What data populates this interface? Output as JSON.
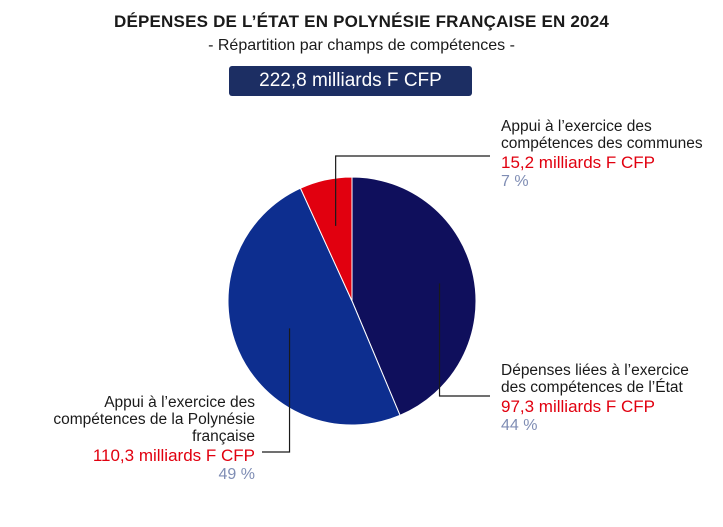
{
  "header": {
    "title": "DÉPENSES DE L’ÉTAT EN POLYNÉSIE FRANÇAISE EN 2024",
    "subtitle": "- Répartition par champs de compétences -",
    "total": "222,8 milliards F CFP"
  },
  "chart_data": {
    "type": "pie",
    "title": "DÉPENSES DE L’ÉTAT EN POLYNÉSIE FRANÇAISE EN 2024",
    "subtitle": "- Répartition par champs de compétences -",
    "total_label": "222,8 milliards F CFP",
    "slices": [
      {
        "label": "Dépenses liées à l’exercice des compétences de l’État",
        "value": 97.3,
        "value_label": "97,3 milliards F CFP",
        "percent_label": "44 %",
        "color": "#0f0f5c"
      },
      {
        "label": "Appui à l’exercice des compétences de la Polynésie française",
        "value": 110.3,
        "value_label": "110,3 milliards F CFP",
        "percent_label": "49 %",
        "color": "#0d2e8f"
      },
      {
        "label": "Appui à l’exercice des compétences des communes",
        "value": 15.2,
        "value_label": "15,2 milliards F CFP",
        "percent_label": "7 %",
        "color": "#e1000f"
      }
    ],
    "colors": {
      "accent_red": "#e1000f",
      "percent_gray": "#7f8db4",
      "badge_bg": "#1c2e63",
      "leader_line": "#1a1a1a"
    }
  }
}
